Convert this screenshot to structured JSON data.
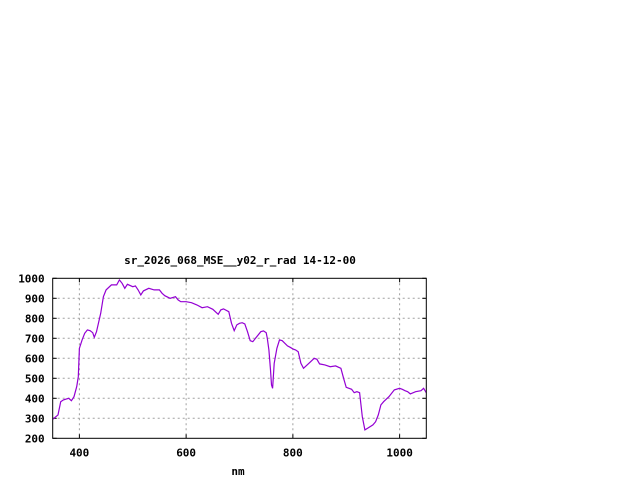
{
  "chart_data": {
    "type": "line",
    "title": "sr_2026_068_MSE__y02_r_rad 14-12-00",
    "xlabel": "nm",
    "ylabel": "",
    "xlim": [
      350,
      1050
    ],
    "ylim": [
      200,
      1000
    ],
    "xticks": [
      400,
      600,
      800,
      1000
    ],
    "yticks": [
      200,
      300,
      400,
      500,
      600,
      700,
      800,
      900,
      1000
    ],
    "grid": true,
    "line_color": "#9400d3",
    "series": [
      {
        "x": [
          350,
          360,
          365,
          370,
          380,
          385,
          390,
          395,
          398,
          400,
          405,
          410,
          415,
          420,
          425,
          428,
          432,
          440,
          445,
          450,
          460,
          470,
          475,
          480,
          485,
          490,
          500,
          505,
          510,
          515,
          520,
          530,
          540,
          550,
          555,
          560,
          570,
          580,
          585,
          590,
          600,
          610,
          620,
          630,
          640,
          650,
          660,
          665,
          670,
          680,
          685,
          690,
          695,
          700,
          705,
          710,
          715,
          720,
          725,
          730,
          740,
          745,
          750,
          752,
          755,
          758,
          760,
          762,
          765,
          770,
          775,
          780,
          790,
          795,
          800,
          805,
          810,
          815,
          820,
          830,
          840,
          845,
          850,
          860,
          870,
          880,
          890,
          895,
          900,
          910,
          915,
          920,
          925,
          930,
          935,
          940,
          950,
          955,
          960,
          965,
          970,
          980,
          990,
          1000,
          1005,
          1010,
          1015,
          1020,
          1030,
          1040,
          1045,
          1050
        ],
        "y": [
          295,
          317,
          383,
          392,
          400,
          388,
          408,
          458,
          508,
          650,
          692,
          725,
          742,
          738,
          728,
          705,
          733,
          825,
          908,
          942,
          967,
          967,
          992,
          975,
          950,
          970,
          958,
          962,
          942,
          917,
          937,
          950,
          942,
          942,
          925,
          913,
          900,
          908,
          892,
          883,
          883,
          878,
          867,
          853,
          858,
          845,
          820,
          842,
          847,
          833,
          775,
          738,
          767,
          775,
          778,
          772,
          733,
          688,
          683,
          700,
          733,
          737,
          728,
          700,
          642,
          542,
          467,
          450,
          575,
          650,
          692,
          688,
          662,
          655,
          647,
          642,
          633,
          575,
          550,
          575,
          600,
          595,
          572,
          567,
          558,
          562,
          550,
          500,
          455,
          445,
          428,
          433,
          428,
          308,
          242,
          250,
          267,
          283,
          317,
          367,
          383,
          408,
          442,
          450,
          445,
          438,
          433,
          422,
          433,
          438,
          450,
          428
        ]
      }
    ]
  }
}
